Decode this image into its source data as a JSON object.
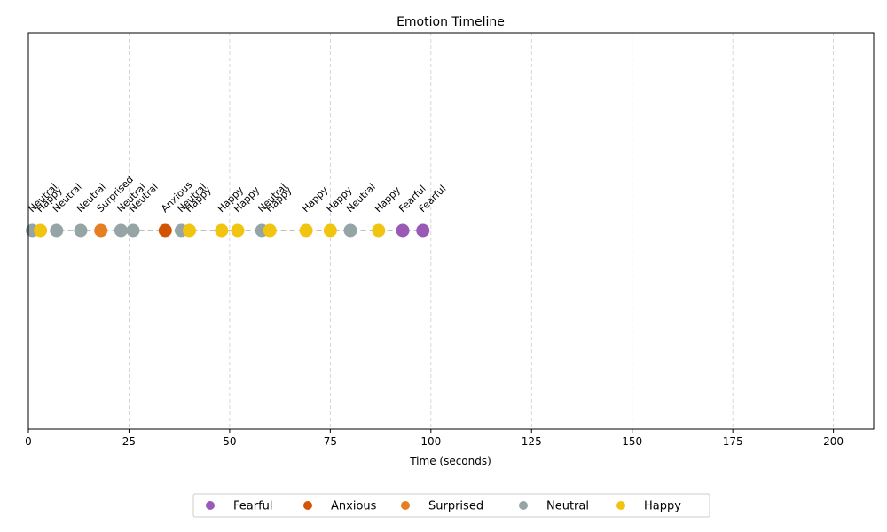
{
  "chart_data": {
    "type": "scatter",
    "title": "Emotion Timeline",
    "xlabel": "Time (seconds)",
    "ylabel": "",
    "xlim": [
      0,
      210
    ],
    "xticks": [
      0,
      25,
      50,
      75,
      100,
      125,
      150,
      175,
      200
    ],
    "grid": "vertical dashed",
    "legend_position": "bottom-center",
    "colors": {
      "Fearful": "#9b59b6",
      "Anxious": "#d35400",
      "Surprised": "#e67e22",
      "Neutral": "#95a5a6",
      "Happy": "#f1c40f",
      "connector": "#aaaaaa"
    },
    "legend": [
      "Fearful",
      "Anxious",
      "Surprised",
      "Neutral",
      "Happy"
    ],
    "points": [
      {
        "t": 1,
        "emotion": "Neutral"
      },
      {
        "t": 3,
        "emotion": "Happy"
      },
      {
        "t": 7,
        "emotion": "Neutral"
      },
      {
        "t": 13,
        "emotion": "Neutral"
      },
      {
        "t": 18,
        "emotion": "Surprised"
      },
      {
        "t": 23,
        "emotion": "Neutral"
      },
      {
        "t": 26,
        "emotion": "Neutral"
      },
      {
        "t": 34,
        "emotion": "Anxious"
      },
      {
        "t": 38,
        "emotion": "Neutral"
      },
      {
        "t": 40,
        "emotion": "Happy"
      },
      {
        "t": 48,
        "emotion": "Happy"
      },
      {
        "t": 52,
        "emotion": "Happy"
      },
      {
        "t": 58,
        "emotion": "Neutral"
      },
      {
        "t": 60,
        "emotion": "Happy"
      },
      {
        "t": 69,
        "emotion": "Happy"
      },
      {
        "t": 75,
        "emotion": "Happy"
      },
      {
        "t": 80,
        "emotion": "Neutral"
      },
      {
        "t": 87,
        "emotion": "Happy"
      },
      {
        "t": 93,
        "emotion": "Fearful"
      },
      {
        "t": 98,
        "emotion": "Fearful"
      }
    ]
  }
}
